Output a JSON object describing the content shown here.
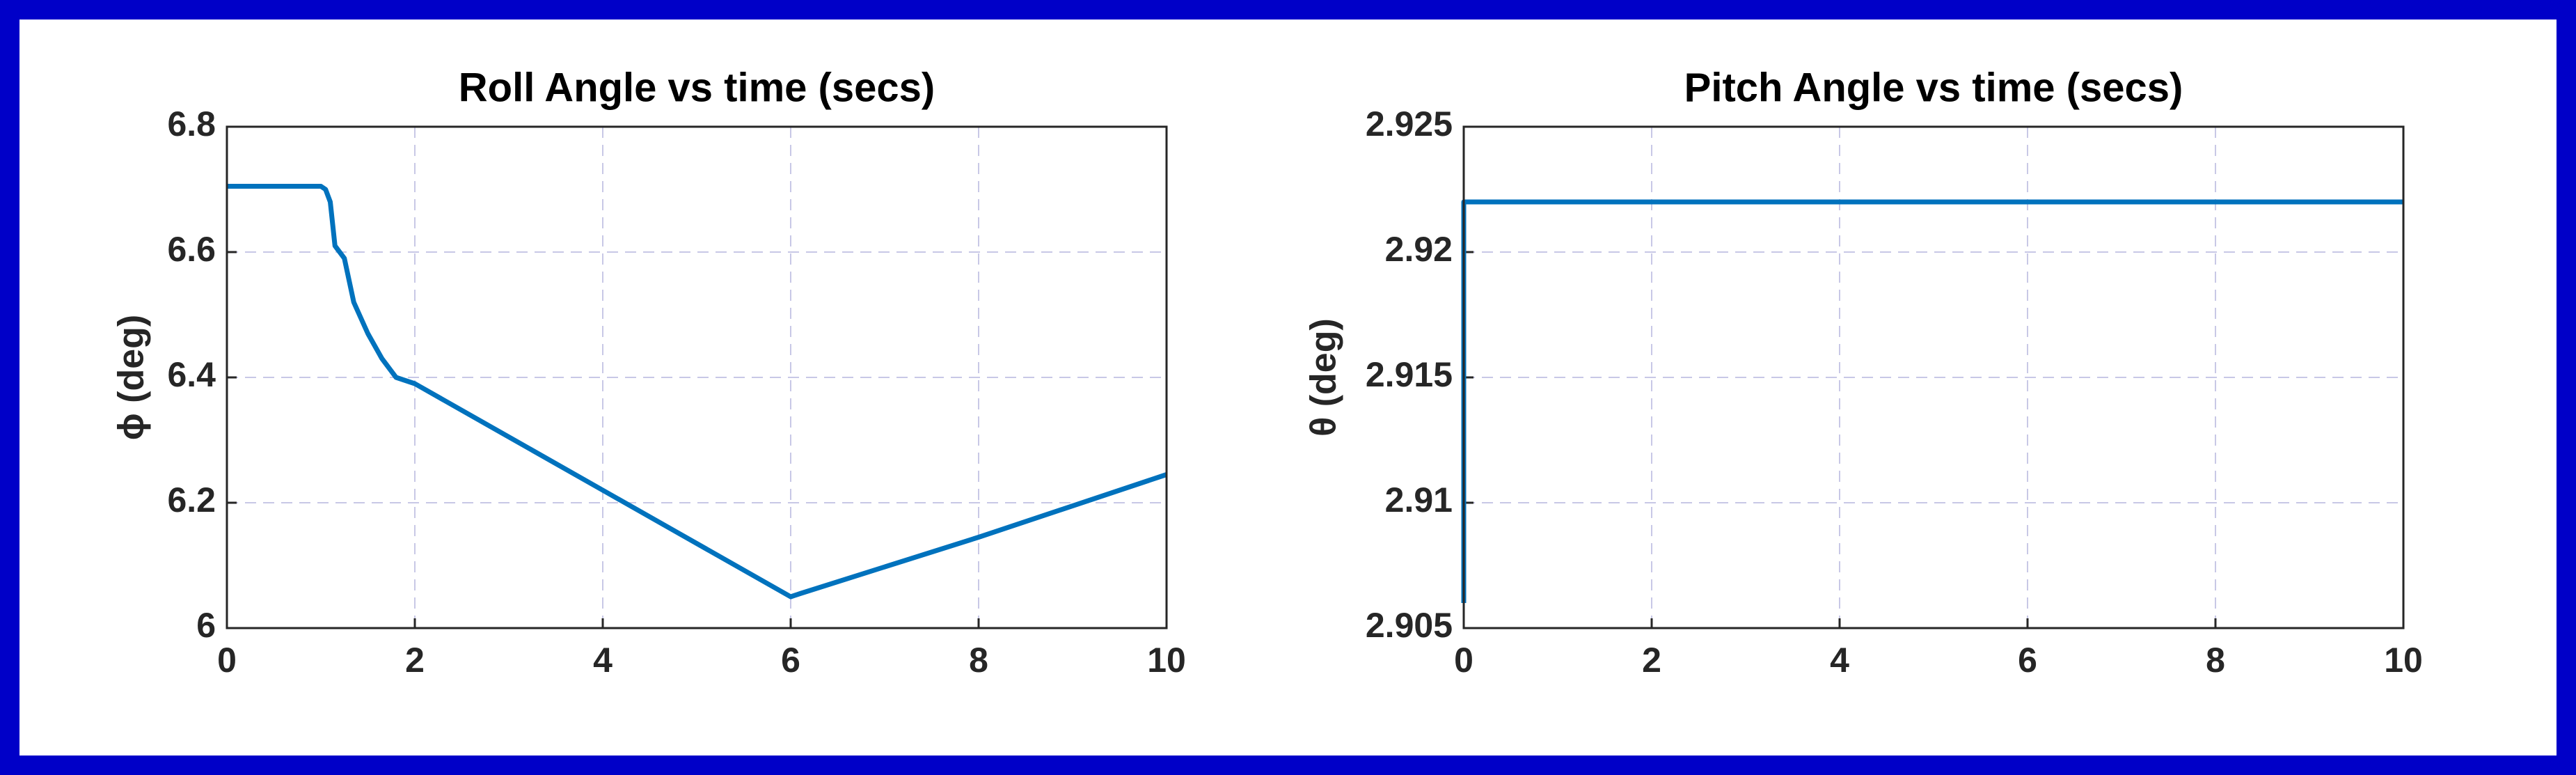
{
  "chart_data": [
    {
      "type": "line",
      "title": "Roll Angle vs time (secs)",
      "y_label": "ϕ (deg)",
      "xlim": [
        0,
        10
      ],
      "xticks": [
        0,
        2,
        4,
        6,
        8,
        10
      ],
      "ylim": [
        6,
        6.8
      ],
      "yticks": [
        6,
        6.2,
        6.4,
        6.6,
        6.8
      ],
      "grid": true,
      "series": [
        {
          "color": "#0072bd",
          "x": [
            0,
            1,
            1.05,
            1.1,
            1.15,
            1.25,
            1.35,
            1.5,
            1.65,
            1.8,
            2,
            4,
            6,
            6.1,
            8,
            10
          ],
          "values": [
            6.705,
            6.705,
            6.7,
            6.68,
            6.61,
            6.59,
            6.52,
            6.47,
            6.43,
            6.4,
            6.39,
            6.22,
            6.05,
            6.055,
            6.145,
            6.245
          ]
        }
      ]
    },
    {
      "type": "line",
      "title": "Pitch Angle vs time (secs)",
      "y_label": "θ (deg)",
      "xlim": [
        0,
        10
      ],
      "xticks": [
        0,
        2,
        4,
        6,
        8,
        10
      ],
      "ylim": [
        2.905,
        2.925
      ],
      "yticks": [
        2.905,
        2.91,
        2.915,
        2.92,
        2.925
      ],
      "grid": true,
      "series": [
        {
          "color": "#0072bd",
          "x": [
            0,
            0,
            10
          ],
          "values": [
            2.906,
            2.922,
            2.922
          ]
        }
      ]
    }
  ]
}
